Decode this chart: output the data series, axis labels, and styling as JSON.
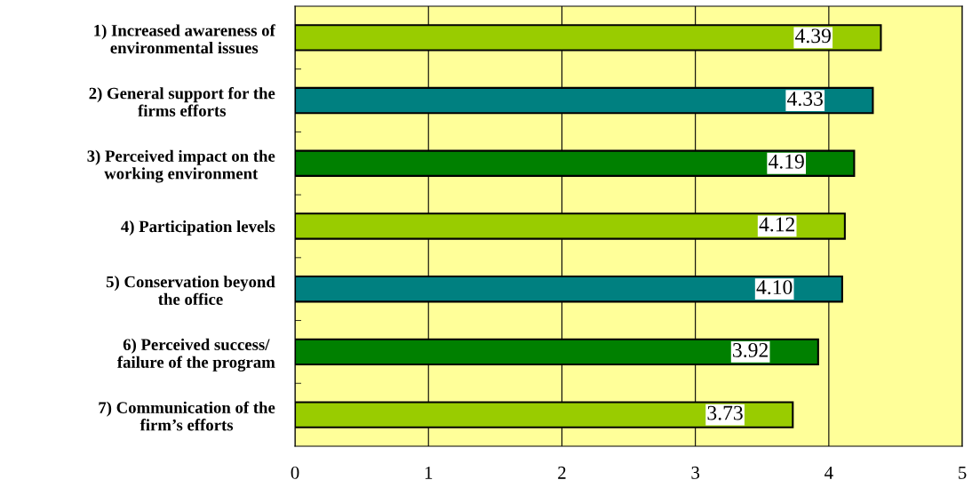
{
  "chart_data": {
    "type": "bar",
    "orientation": "horizontal",
    "categories": [
      "1) Increased awareness of\nenvironmental issues",
      "2) General support for the\nfirms efforts",
      "3) Perceived impact on the\nworking environment",
      "4) Participation levels",
      "5) Conservation beyond\nthe office",
      "6) Perceived success/\nfailure of the program",
      "7) Communication of the\nfirm’s efforts"
    ],
    "values": [
      4.39,
      4.33,
      4.19,
      4.12,
      4.1,
      3.92,
      3.73
    ],
    "value_labels": [
      "4.39",
      "4.33",
      "4.19",
      "4.12",
      "4.10",
      "3.92",
      "3.73"
    ],
    "colors": [
      "#99cc00",
      "#008080",
      "#008000",
      "#99cc00",
      "#008080",
      "#008000",
      "#99cc00"
    ],
    "xlim": [
      0,
      5
    ],
    "xticks": [
      0,
      1,
      2,
      3,
      4,
      5
    ],
    "grid": "x",
    "legend": false
  }
}
